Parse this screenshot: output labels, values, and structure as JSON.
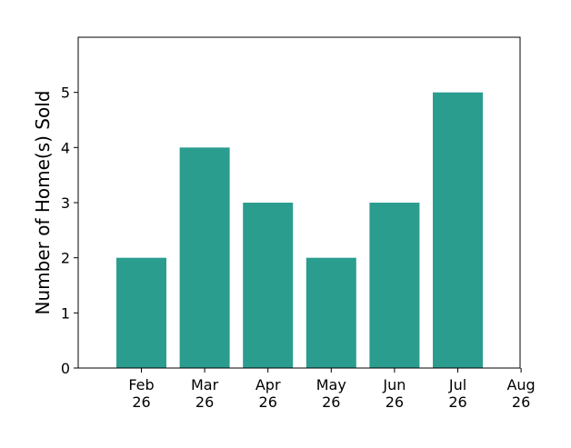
{
  "chart_data": {
    "type": "bar",
    "title": "",
    "xlabel": "",
    "ylabel": "Number of Home(s) Sold",
    "categories": [
      "Feb\n26",
      "Mar\n26",
      "Apr\n26",
      "May\n26",
      "Jun\n26",
      "Jul\n26"
    ],
    "values": [
      2,
      4,
      3,
      2,
      3,
      5
    ],
    "x_tick_labels": [
      "Feb\n26",
      "Mar\n26",
      "Apr\n26",
      "May\n26",
      "Jun\n26",
      "Jul\n26",
      "Aug\n26"
    ],
    "y_ticks": [
      0,
      1,
      2,
      3,
      4,
      5
    ],
    "ylim": [
      0,
      6
    ],
    "grid": false,
    "legend": "none",
    "bar_color": "#2a9d8f"
  }
}
